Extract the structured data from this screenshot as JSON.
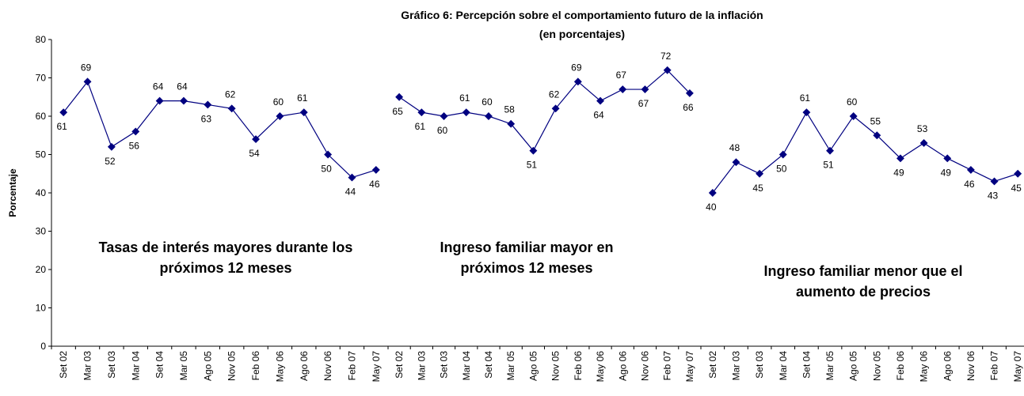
{
  "chart_data": {
    "type": "line",
    "title": "Gráfico 6: Percepción sobre el comportamiento futuro de la inflación",
    "subtitle": "(en porcentajes)",
    "y_label": "Porcentaje",
    "categories": [
      "Set 02",
      "Mar 03",
      "Set 03",
      "Mar 04",
      "Set 04",
      "Mar 05",
      "Ago 05",
      "Nov 05",
      "Feb 06",
      "May 06",
      "Ago 06",
      "Nov 06",
      "Feb 07",
      "May 07"
    ],
    "ylim": [
      0,
      80
    ],
    "yticks": [
      0,
      10,
      20,
      30,
      40,
      50,
      60,
      70,
      80
    ],
    "grid": false,
    "series": [
      {
        "name": "Tasas de interés mayores durante los próximos 12 meses",
        "color": "#000080",
        "values": [
          61,
          69,
          52,
          56,
          64,
          64,
          63,
          62,
          54,
          60,
          61,
          50,
          44,
          46
        ]
      },
      {
        "name": "Ingreso familiar mayor en próximos 12 meses",
        "color": "#000080",
        "values": [
          65,
          61,
          60,
          61,
          60,
          58,
          51,
          62,
          69,
          64,
          67,
          67,
          72,
          66
        ]
      },
      {
        "name": "Ingreso familiar menor que el aumento de precios",
        "color": "#000080",
        "values": [
          40,
          48,
          45,
          50,
          61,
          51,
          60,
          55,
          49,
          53,
          49,
          46,
          43,
          45
        ]
      }
    ]
  }
}
